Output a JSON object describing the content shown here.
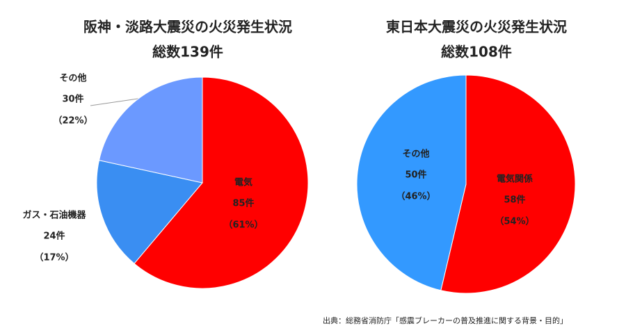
{
  "chart_data": [
    {
      "type": "pie",
      "title": "阪神・淡路大震災の火災発生状況",
      "subtitle": "総数139件",
      "categories": [
        "電気",
        "ガス・石油機器",
        "その他"
      ],
      "values": [
        85,
        24,
        30
      ],
      "value_labels": [
        "85件",
        "24件",
        "30件"
      ],
      "percents": [
        61,
        17,
        22
      ],
      "percent_labels": [
        "（61%）",
        "（17%）",
        "（22%）"
      ],
      "colors": [
        "#ff0000",
        "#3a8ef2",
        "#6b99ff"
      ]
    },
    {
      "type": "pie",
      "title": "東日本大震災の火災発生状況",
      "subtitle": "総数108件",
      "categories": [
        "電気関係",
        "その他"
      ],
      "values": [
        58,
        50
      ],
      "value_labels": [
        "58件",
        "50件"
      ],
      "percents": [
        54,
        46
      ],
      "percent_labels": [
        "（54%）",
        "（46%）"
      ],
      "colors": [
        "#ff0000",
        "#3399ff"
      ]
    }
  ],
  "source": "出典：総務省消防庁「感震ブレーカーの普及推進に関する背景・目的」"
}
